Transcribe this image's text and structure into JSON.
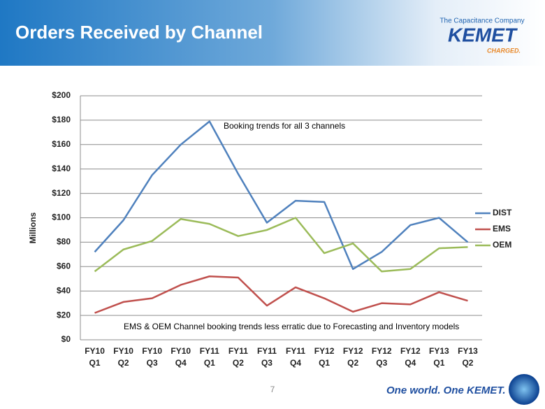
{
  "header": {
    "title": "Orders Received by Channel",
    "tagline": "The Capacitance Company",
    "brand": "KEMET",
    "slogan": "CHARGED."
  },
  "footer": {
    "page": "7",
    "motto": "One world. One KEMET."
  },
  "chart_data": {
    "type": "line",
    "ylabel": "Millions",
    "annotations": [
      "Booking trends for all 3 channels",
      "EMS & OEM Channel booking trends less erratic due to Forecasting  and Inventory models"
    ],
    "categories": [
      [
        "FY10",
        "Q1"
      ],
      [
        "FY10",
        "Q2"
      ],
      [
        "FY10",
        "Q3"
      ],
      [
        "FY10",
        "Q4"
      ],
      [
        "FY11",
        "Q1"
      ],
      [
        "FY11",
        "Q2"
      ],
      [
        "FY11",
        "Q3"
      ],
      [
        "FY11",
        "Q4"
      ],
      [
        "FY12",
        "Q1"
      ],
      [
        "FY12",
        "Q2"
      ],
      [
        "FY12",
        "Q3"
      ],
      [
        "FY12",
        "Q4"
      ],
      [
        "FY13",
        "Q1"
      ],
      [
        "FY13",
        "Q2"
      ]
    ],
    "series": [
      {
        "name": "DIST",
        "color": "#4f81bd",
        "values": [
          72,
          98,
          135,
          160,
          179,
          136,
          96,
          114,
          113,
          58,
          72,
          94,
          100,
          80
        ]
      },
      {
        "name": "EMS",
        "color": "#c0504d",
        "values": [
          22,
          31,
          34,
          45,
          52,
          51,
          28,
          43,
          34,
          23,
          30,
          29,
          39,
          32
        ]
      },
      {
        "name": "OEM",
        "color": "#9bbb59",
        "values": [
          56,
          74,
          81,
          99,
          95,
          85,
          90,
          100,
          71,
          79,
          56,
          58,
          75,
          76
        ]
      }
    ],
    "ylim": [
      0,
      200
    ],
    "yticks": [
      {
        "value": 0,
        "label": "$0"
      },
      {
        "value": 20,
        "label": "$20"
      },
      {
        "value": 40,
        "label": "$40"
      },
      {
        "value": 60,
        "label": "$60"
      },
      {
        "value": 80,
        "label": "$80"
      },
      {
        "value": 100,
        "label": "$100"
      },
      {
        "value": 120,
        "label": "$120"
      },
      {
        "value": 140,
        "label": "$140"
      },
      {
        "value": 160,
        "label": "$160"
      },
      {
        "value": 180,
        "label": "$180"
      },
      {
        "value": 200,
        "label": "$200"
      }
    ],
    "grid": true,
    "legend": "right"
  }
}
